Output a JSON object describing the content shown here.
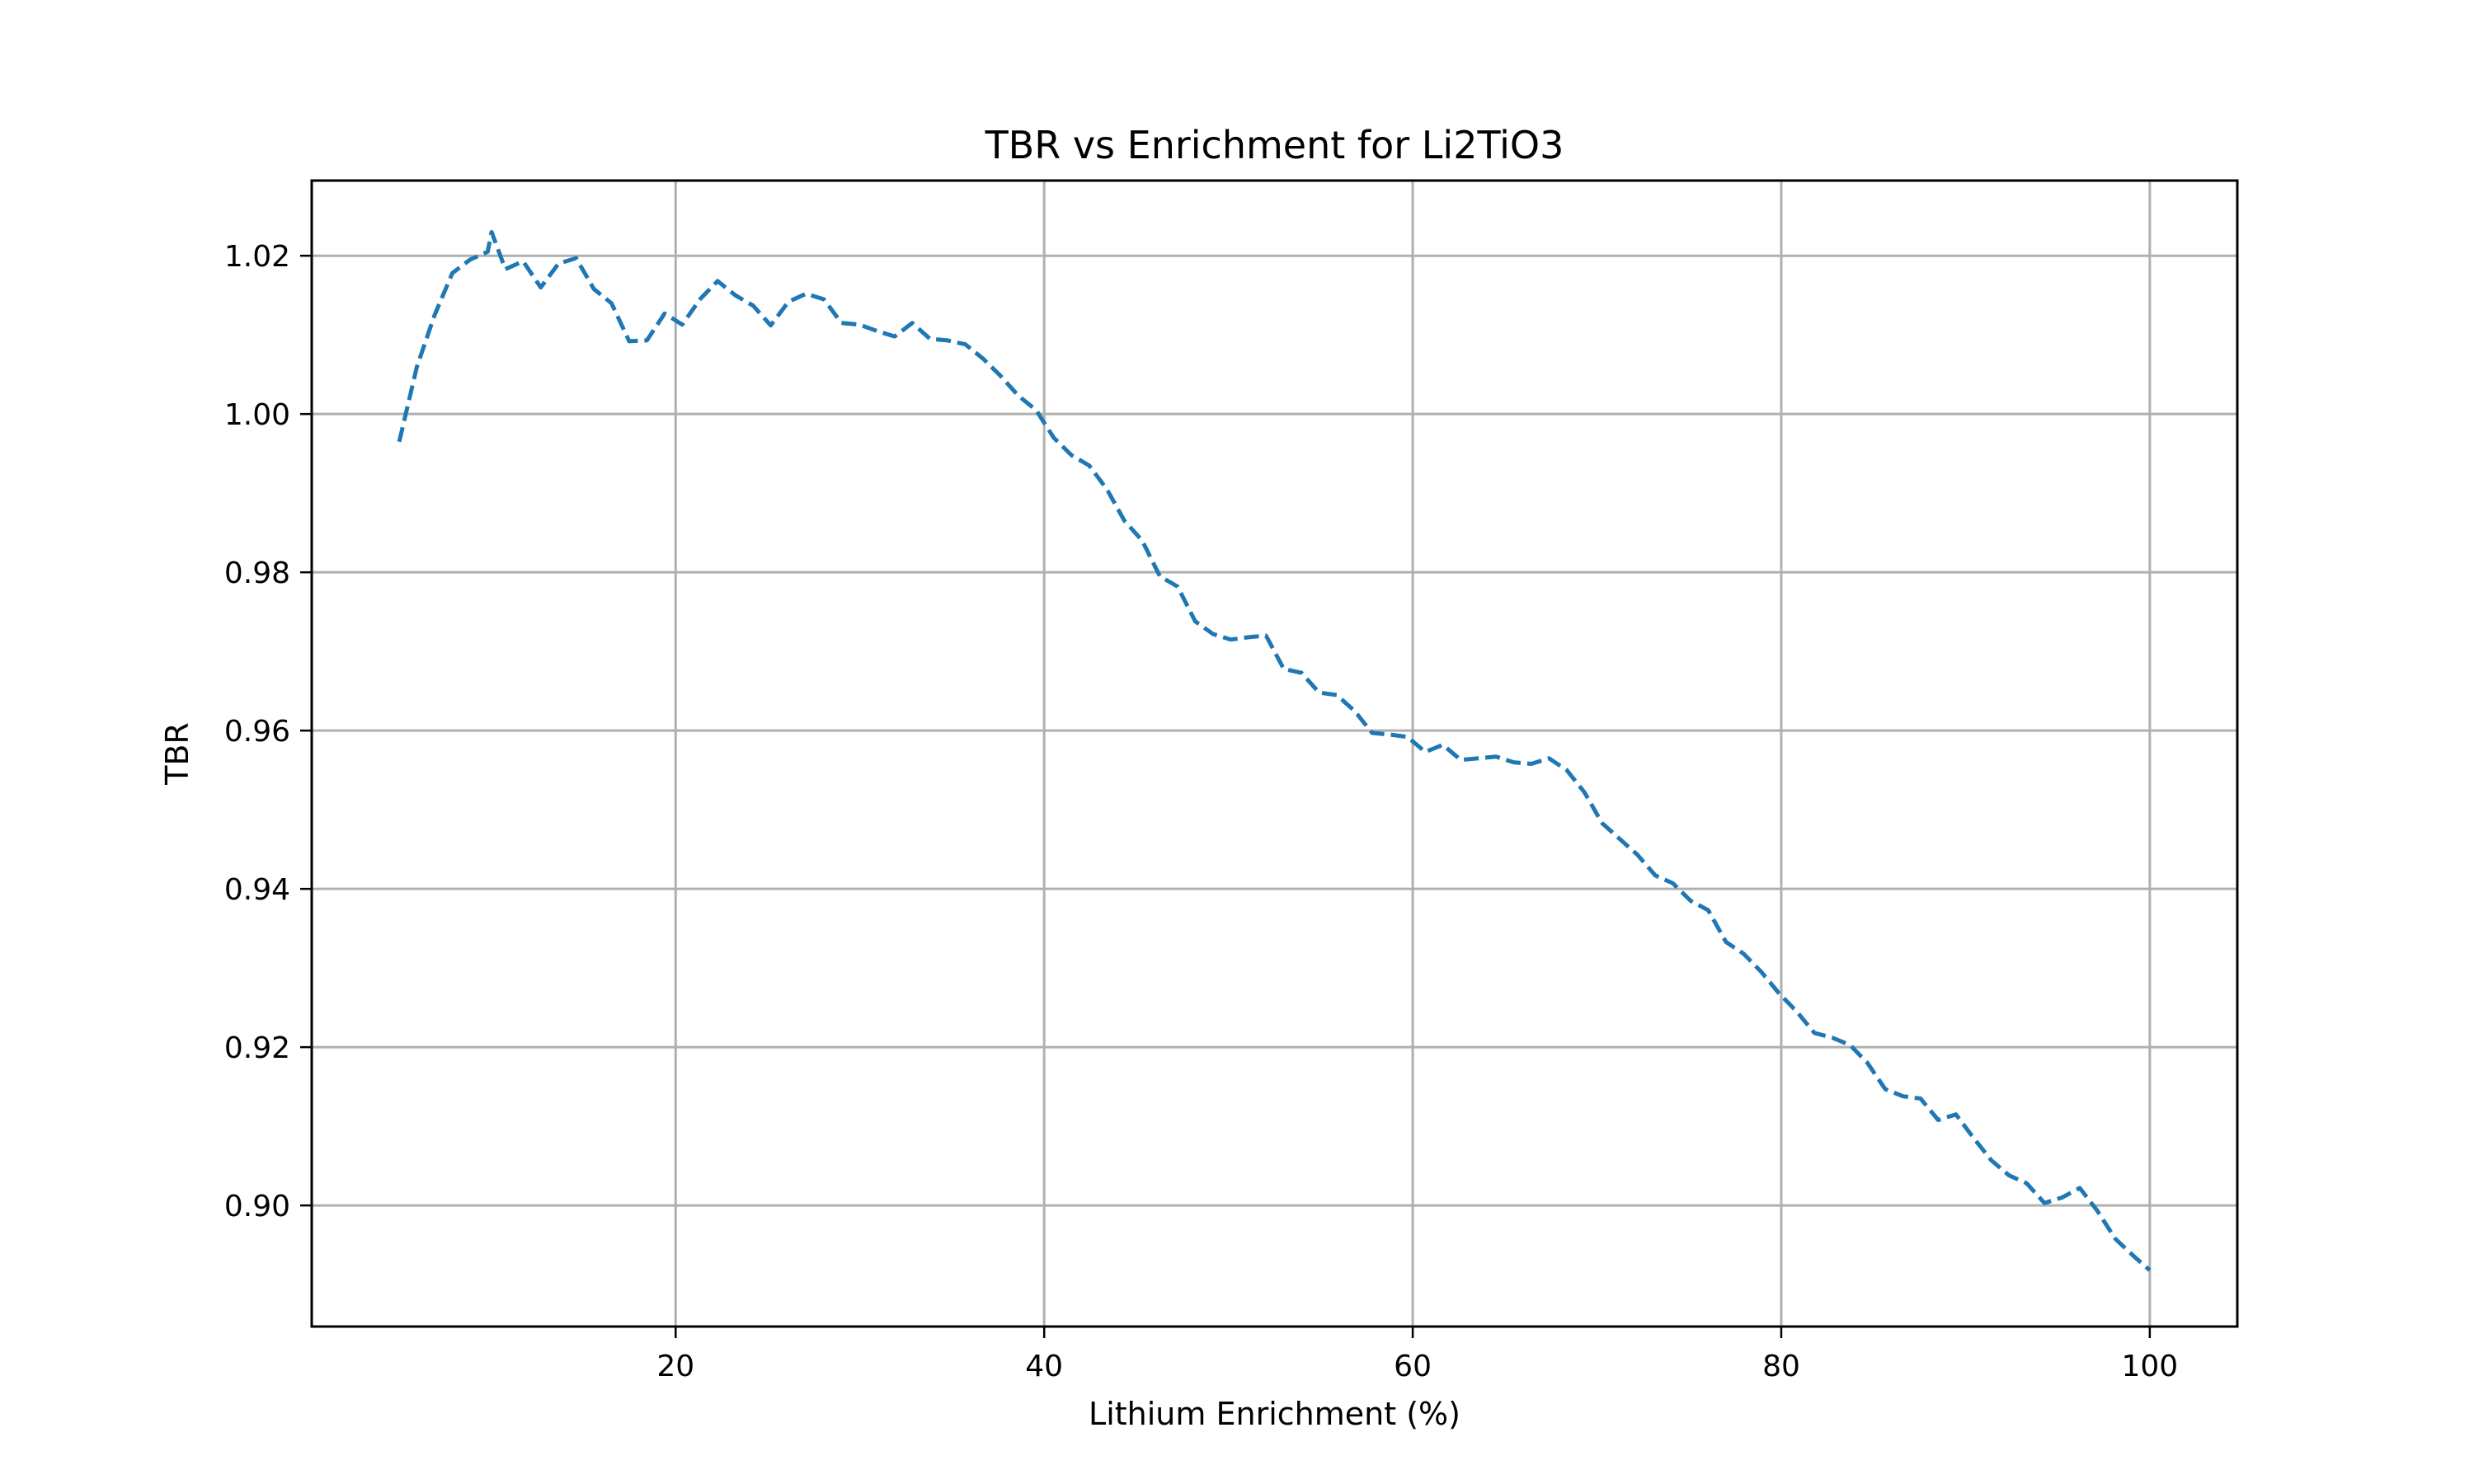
{
  "chart_data": {
    "type": "line",
    "title": "TBR vs Enrichment for Li2TiO3",
    "xlabel": "Lithium Enrichment (%)",
    "ylabel": "TBR",
    "xlim": [
      0.25,
      104.75
    ],
    "ylim": [
      0.8847,
      1.0295
    ],
    "x_ticks": [
      20,
      40,
      60,
      80,
      100
    ],
    "x_tick_labels": [
      "20",
      "40",
      "60",
      "80",
      "100"
    ],
    "y_ticks": [
      0.9,
      0.92,
      0.94,
      0.96,
      0.98,
      1.0,
      1.02
    ],
    "y_tick_labels": [
      "0.90",
      "0.92",
      "0.94",
      "0.96",
      "0.98",
      "1.00",
      "1.02"
    ],
    "grid": true,
    "line_color": "#1f77b4",
    "line_style": "dashed",
    "series": [
      {
        "x": [
          5,
          5.96,
          6.92,
          7.88,
          8.84,
          9.8,
          10.01,
          10.76,
          11.72,
          12.68,
          13.64,
          14.6,
          15.56,
          16.52,
          17.48,
          18.44,
          19.4,
          20.36,
          21.32,
          22.28,
          23.24,
          24.2,
          25.16,
          26.12,
          27.08,
          28.04,
          29,
          29.96,
          30.92,
          31.88,
          32.84,
          33.8,
          34.76,
          35.72,
          36.68,
          37.64,
          38.6,
          39.56,
          40.52,
          41.48,
          42.44,
          43.4,
          44.36,
          45.32,
          46.28,
          47.24,
          48.2,
          49.16,
          50.12,
          51.08,
          52.04,
          53,
          53.96,
          54.92,
          55.88,
          56.84,
          57.8,
          58.76,
          59.72,
          60.68,
          61.64,
          62.6,
          63.56,
          64.52,
          65.48,
          66.44,
          67.4,
          68.36,
          69.32,
          70.28,
          71.24,
          72.2,
          73.16,
          74.12,
          75.08,
          76.04,
          77,
          77.96,
          78.92,
          79.88,
          80.84,
          81.8,
          82.76,
          83.72,
          84.68,
          85.64,
          86.6,
          87.56,
          88.52,
          89.48,
          90.44,
          91.4,
          92.36,
          93.32,
          94.28,
          95.24,
          96.2,
          97.16,
          98.12,
          99.08,
          100
        ],
        "y": [
          0.9965,
          1.006,
          1.0125,
          1.0178,
          1.0195,
          1.0205,
          1.023,
          1.0183,
          1.0193,
          1.016,
          1.019,
          1.0197,
          1.0158,
          1.014,
          1.0092,
          1.0093,
          1.0127,
          1.0113,
          1.0145,
          1.0168,
          1.015,
          1.0137,
          1.0112,
          1.0142,
          1.0152,
          1.0145,
          1.0115,
          1.0113,
          1.0105,
          1.0098,
          1.0115,
          1.0095,
          1.0093,
          1.0088,
          1.007,
          1.0048,
          1.0023,
          1.0005,
          0.997,
          0.9948,
          0.9935,
          0.9905,
          0.9865,
          0.984,
          0.9795,
          0.9782,
          0.9738,
          0.9722,
          0.9715,
          0.9718,
          0.972,
          0.9678,
          0.9673,
          0.9648,
          0.9645,
          0.9625,
          0.9597,
          0.9595,
          0.9592,
          0.9573,
          0.9582,
          0.9563,
          0.9565,
          0.9567,
          0.956,
          0.9558,
          0.9565,
          0.955,
          0.9522,
          0.9483,
          0.9463,
          0.9443,
          0.9417,
          0.9407,
          0.9385,
          0.9373,
          0.9333,
          0.9318,
          0.9295,
          0.9268,
          0.9245,
          0.9218,
          0.9212,
          0.9203,
          0.918,
          0.9147,
          0.9138,
          0.9135,
          0.9108,
          0.9115,
          0.9085,
          0.9057,
          0.9038,
          0.9028,
          0.9003,
          0.901,
          0.9022,
          0.8993,
          0.8958,
          0.8937,
          0.8918
        ]
      }
    ]
  }
}
